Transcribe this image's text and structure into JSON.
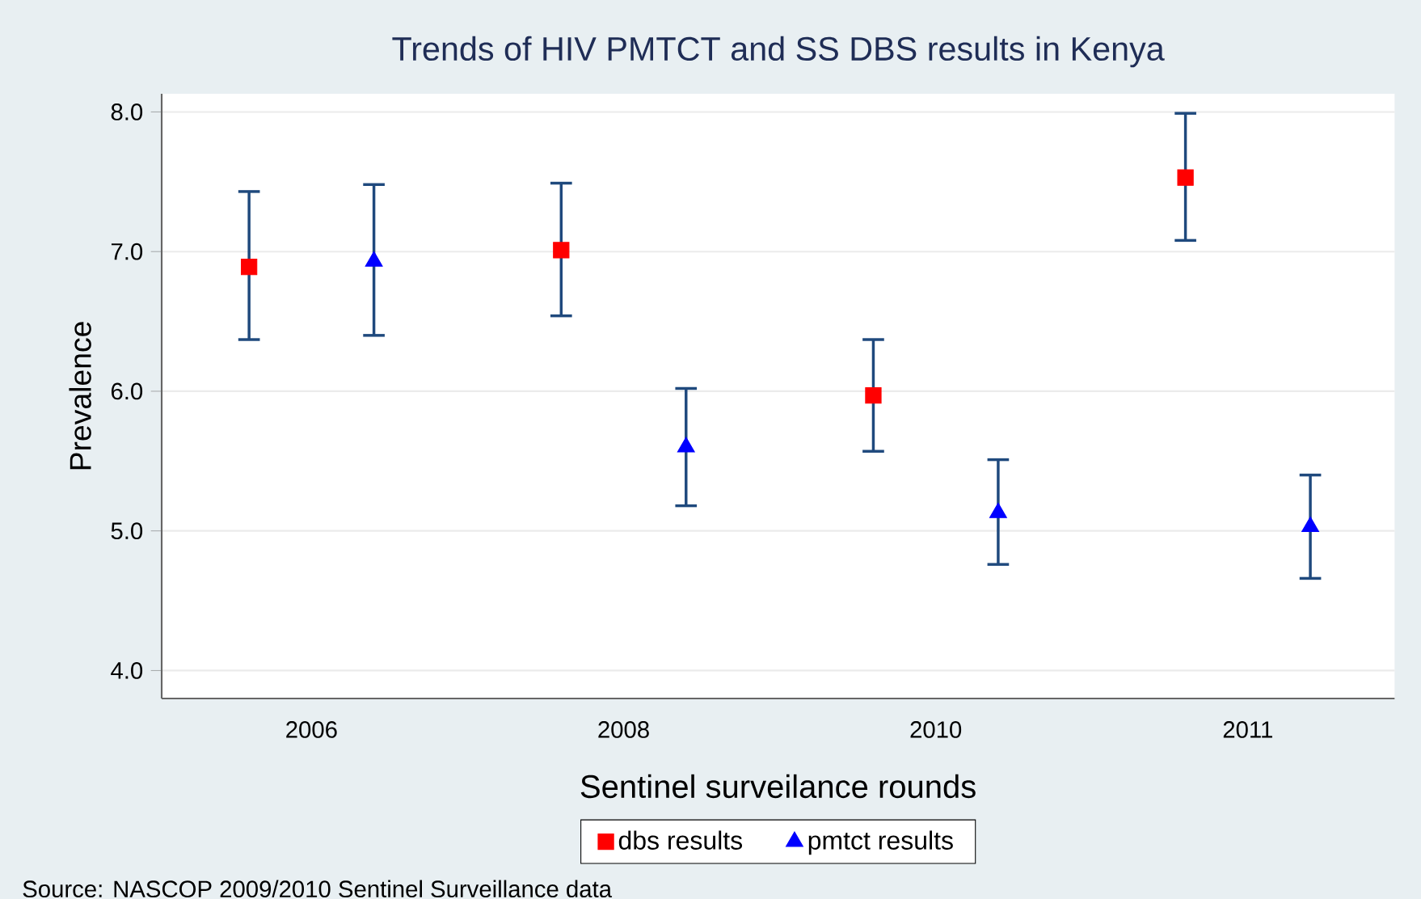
{
  "chart_data": {
    "type": "scatter",
    "title": "Trends of HIV PMTCT and SS DBS results in Kenya",
    "xlabel": "Sentinel surveilance rounds",
    "ylabel": "Prevalence",
    "categories": [
      "2006",
      "2008",
      "2010",
      "2011"
    ],
    "series": [
      {
        "name": "dbs results",
        "color": "#ff0000",
        "marker": "square",
        "values": [
          6.89,
          7.01,
          5.97,
          7.53
        ],
        "errors": [
          [
            6.37,
            7.43
          ],
          [
            6.54,
            7.49
          ],
          [
            5.57,
            6.37
          ],
          [
            7.08,
            7.99
          ]
        ]
      },
      {
        "name": "pmtct results",
        "color": "#0000ff",
        "marker": "triangle",
        "values": [
          6.93,
          5.6,
          5.13,
          5.03
        ],
        "errors": [
          [
            6.4,
            7.48
          ],
          [
            5.18,
            6.02
          ],
          [
            4.76,
            5.51
          ],
          [
            4.66,
            5.4
          ]
        ]
      }
    ],
    "ylim": [
      3.8,
      8.13
    ],
    "yticks": [
      {
        "value": 4,
        "label": "4.0"
      },
      {
        "value": 5,
        "label": "5.0"
      },
      {
        "value": 6,
        "label": "6.0"
      },
      {
        "value": 7,
        "label": "7.0"
      },
      {
        "value": 8,
        "label": "8.0"
      }
    ],
    "grid": "y",
    "legend": "bottom",
    "annotations": [
      "Source: NASCOP 2009/2010 Sentinel Surveillance data"
    ]
  }
}
